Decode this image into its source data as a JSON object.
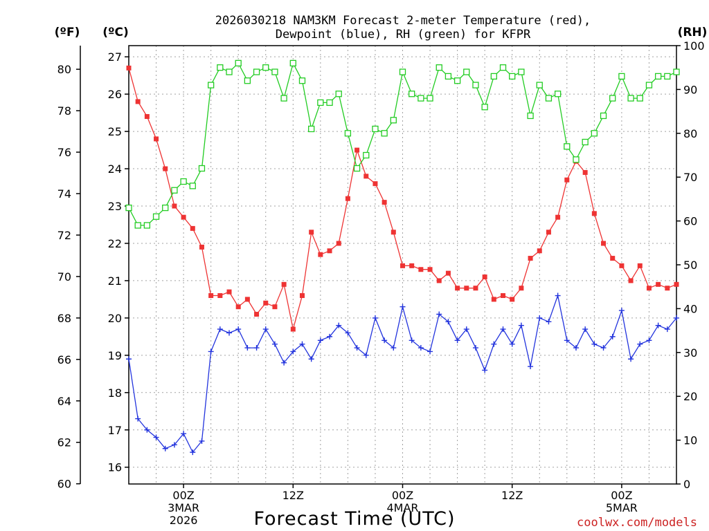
{
  "chart_data": {
    "type": "line",
    "title": "2026030218 NAM3KM Forecast 2-meter Temperature (red),",
    "subtitle": "Dewpoint (blue), RH (green) for KFPR",
    "xlabel": "Forecast Time (UTC)",
    "credit": "coolwx.com/models",
    "units": {
      "fahrenheit": "(ºF)",
      "celsius": "(ºC)",
      "rh": "(RH)"
    },
    "fahrenheit_ticks": [
      "60",
      "62",
      "64",
      "66",
      "68",
      "70",
      "72",
      "74",
      "76",
      "78",
      "80"
    ],
    "celsius_ticks": [
      "16",
      "17",
      "18",
      "19",
      "20",
      "21",
      "22",
      "23",
      "24",
      "25",
      "26",
      "27"
    ],
    "rh_ticks": [
      "0",
      "10",
      "20",
      "30",
      "40",
      "50",
      "60",
      "70",
      "80",
      "90",
      "100"
    ],
    "x_ticks": [
      {
        "hour": 6,
        "line1": "00Z",
        "line2": "3MAR",
        "line3": "2026"
      },
      {
        "hour": 18,
        "line1": "12Z",
        "line2": "",
        "line3": ""
      },
      {
        "hour": 30,
        "line1": "00Z",
        "line2": "4MAR",
        "line3": ""
      },
      {
        "hour": 42,
        "line1": "12Z",
        "line2": "",
        "line3": ""
      },
      {
        "hour": 54,
        "line1": "00Z",
        "line2": "5MAR",
        "line3": ""
      }
    ],
    "x_range_hours": [
      0,
      60
    ],
    "celsius_range": [
      15.55,
      27.3
    ],
    "rh_range": [
      0,
      100
    ],
    "series": [
      {
        "name": "Temperature",
        "unit": "celsius",
        "color": "#ee3333",
        "marker": "filled-square",
        "values": [
          26.7,
          25.8,
          25.4,
          24.8,
          24.0,
          23.0,
          22.7,
          22.4,
          21.9,
          20.6,
          20.6,
          20.7,
          20.3,
          20.5,
          20.1,
          20.4,
          20.3,
          20.9,
          19.7,
          20.6,
          22.3,
          21.7,
          21.8,
          22.0,
          23.2,
          24.5,
          23.8,
          23.6,
          23.1,
          22.3,
          21.4,
          21.4,
          21.3,
          21.3,
          21.0,
          21.2,
          20.8,
          20.8,
          20.8,
          21.1,
          20.5,
          20.6,
          20.5,
          20.8,
          21.6,
          21.8,
          22.3,
          22.7,
          23.7,
          24.2,
          23.9,
          22.8,
          22.0,
          21.6,
          21.4,
          21.0,
          21.4,
          20.8,
          20.9,
          20.8,
          20.9
        ]
      },
      {
        "name": "Dewpoint",
        "unit": "celsius",
        "color": "#2233dd",
        "marker": "plus",
        "values": [
          18.9,
          17.3,
          17.0,
          16.8,
          16.5,
          16.6,
          16.9,
          16.4,
          16.7,
          19.1,
          19.7,
          19.6,
          19.7,
          19.2,
          19.2,
          19.7,
          19.3,
          18.8,
          19.1,
          19.3,
          18.9,
          19.4,
          19.5,
          19.8,
          19.6,
          19.2,
          19.0,
          20.0,
          19.4,
          19.2,
          20.3,
          19.4,
          19.2,
          19.1,
          20.1,
          19.9,
          19.4,
          19.7,
          19.2,
          18.6,
          19.3,
          19.7,
          19.3,
          19.8,
          18.7,
          20.0,
          19.9,
          20.6,
          19.4,
          19.2,
          19.7,
          19.3,
          19.2,
          19.5,
          20.2,
          18.9,
          19.3,
          19.4,
          19.8,
          19.7,
          20.0
        ]
      },
      {
        "name": "RH",
        "unit": "rh",
        "color": "#22cc22",
        "marker": "open-square",
        "values": [
          63,
          59,
          59,
          61,
          63,
          67,
          69,
          68,
          72,
          91,
          95,
          94,
          96,
          92,
          94,
          95,
          94,
          88,
          96,
          92,
          81,
          87,
          87,
          89,
          80,
          72,
          75,
          81,
          80,
          83,
          94,
          89,
          88,
          88,
          95,
          93,
          92,
          94,
          91,
          86,
          93,
          95,
          93,
          94,
          84,
          91,
          88,
          89,
          77,
          74,
          78,
          80,
          84,
          88,
          93,
          88,
          88,
          91,
          93,
          93,
          94
        ]
      }
    ]
  }
}
